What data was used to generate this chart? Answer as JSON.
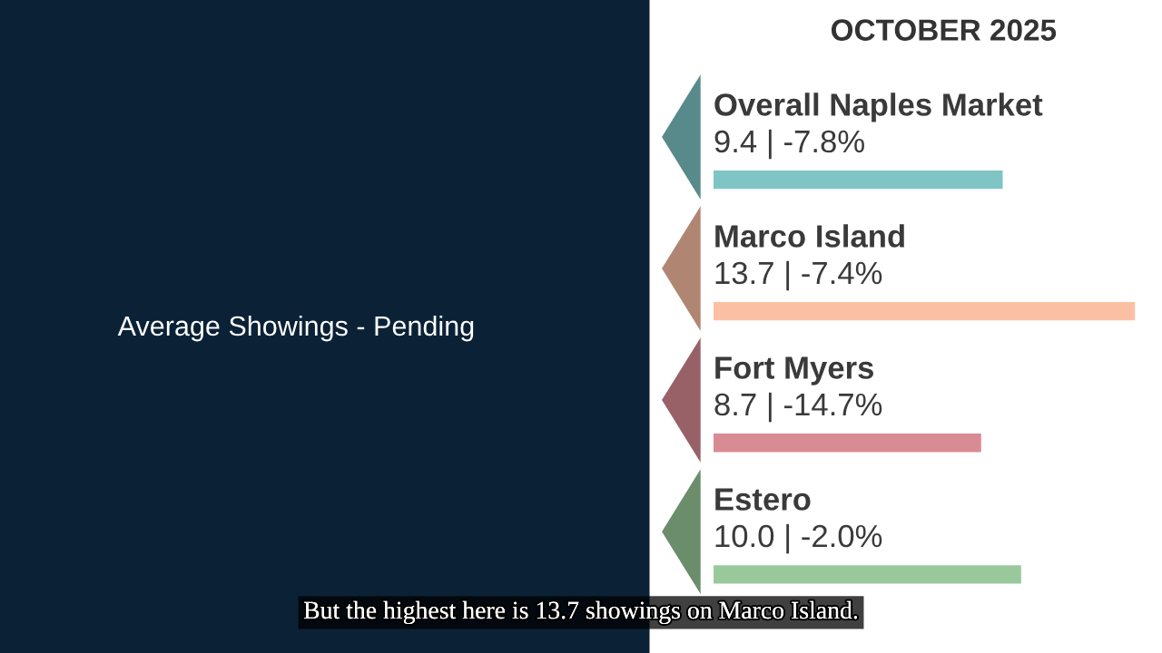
{
  "chart_data": {
    "type": "bar",
    "orientation": "horizontal",
    "title": "Average Showings - Pending",
    "subtitle": "OCTOBER 2025",
    "categories": [
      "Overall Naples Market",
      "Marco Island",
      "Fort Myers",
      "Estero"
    ],
    "values": [
      9.4,
      13.7,
      8.7,
      10.0
    ],
    "value_labels": [
      "9.4 | -7.8%",
      "13.7 | -7.4%",
      "8.7 | -14.7%",
      "10.0 | -2.0%"
    ],
    "colors": [
      "#7fc5c6",
      "#fbc0a3",
      "#d98b93",
      "#99c99b"
    ],
    "annotations": [
      "But the highest here is 13.7 showings on Marco Island."
    ]
  }
}
